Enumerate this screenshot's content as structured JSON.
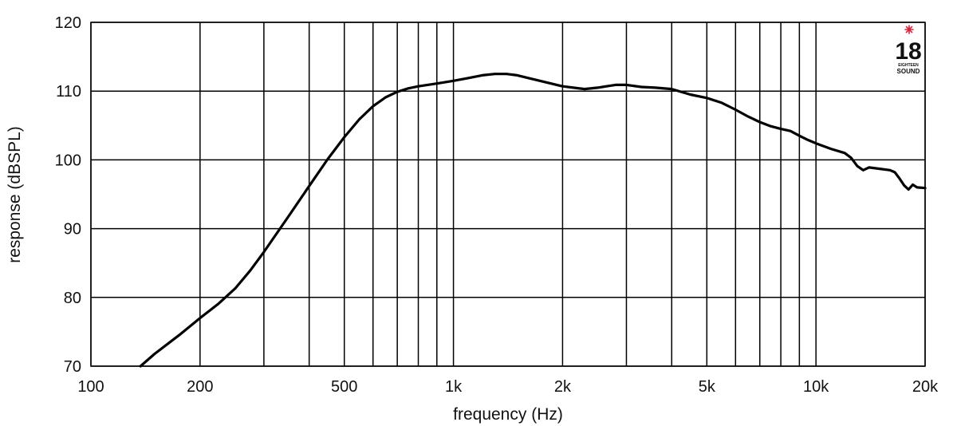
{
  "chart_data": {
    "type": "line",
    "x_scale": "log",
    "xlabel": "frequency (Hz)",
    "ylabel": "response (dBSPL)",
    "xlim": [
      100,
      20000
    ],
    "ylim": [
      70,
      120
    ],
    "grid": true,
    "x_major_ticks": [
      {
        "value": 100,
        "label": "100"
      },
      {
        "value": 200,
        "label": "200"
      },
      {
        "value": 500,
        "label": "500"
      },
      {
        "value": 1000,
        "label": "1k"
      },
      {
        "value": 2000,
        "label": "2k"
      },
      {
        "value": 5000,
        "label": "5k"
      },
      {
        "value": 10000,
        "label": "10k"
      },
      {
        "value": 20000,
        "label": "20k"
      }
    ],
    "x_minor_gridlines": [
      300,
      400,
      600,
      700,
      800,
      900,
      3000,
      4000,
      6000,
      7000,
      8000,
      9000
    ],
    "y_ticks": [
      {
        "value": 70,
        "label": "70"
      },
      {
        "value": 80,
        "label": "80"
      },
      {
        "value": 90,
        "label": "90"
      },
      {
        "value": 100,
        "label": "100"
      },
      {
        "value": 110,
        "label": "110"
      },
      {
        "value": 120,
        "label": "120"
      }
    ],
    "series": [
      {
        "color": "#000000",
        "x": [
          137,
          150,
          175,
          200,
          225,
          250,
          275,
          300,
          350,
          400,
          450,
          500,
          550,
          600,
          650,
          700,
          750,
          800,
          900,
          1000,
          1100,
          1200,
          1300,
          1400,
          1500,
          1700,
          2000,
          2300,
          2500,
          2800,
          3000,
          3300,
          3600,
          4000,
          4500,
          5000,
          5500,
          6000,
          6500,
          7000,
          7500,
          8000,
          8500,
          9000,
          9500,
          10000,
          11000,
          12000,
          12500,
          13000,
          13500,
          14000,
          15000,
          16000,
          16500,
          17000,
          17500,
          18000,
          18500,
          19000,
          20000
        ],
        "y": [
          70,
          71.8,
          74.5,
          77,
          79.1,
          81.3,
          83.9,
          86.6,
          91.7,
          96.2,
          100.1,
          103.3,
          105.9,
          107.8,
          109.1,
          109.9,
          110.4,
          110.7,
          111.1,
          111.5,
          111.9,
          112.3,
          112.5,
          112.5,
          112.3,
          111.6,
          110.7,
          110.3,
          110.5,
          110.9,
          110.9,
          110.6,
          110.5,
          110.3,
          109.5,
          109.0,
          108.3,
          107.3,
          106.3,
          105.5,
          104.9,
          104.5,
          104.2,
          103.5,
          102.9,
          102.4,
          101.6,
          101.0,
          100.3,
          99.1,
          98.5,
          98.9,
          98.7,
          98.5,
          98.2,
          97.3,
          96.3,
          95.7,
          96.4,
          96.0,
          95.9
        ]
      }
    ]
  },
  "logo": {
    "number": "18",
    "line1": "EIGHTEEN",
    "line2": "SOUND",
    "star_color": "#e0203a"
  }
}
